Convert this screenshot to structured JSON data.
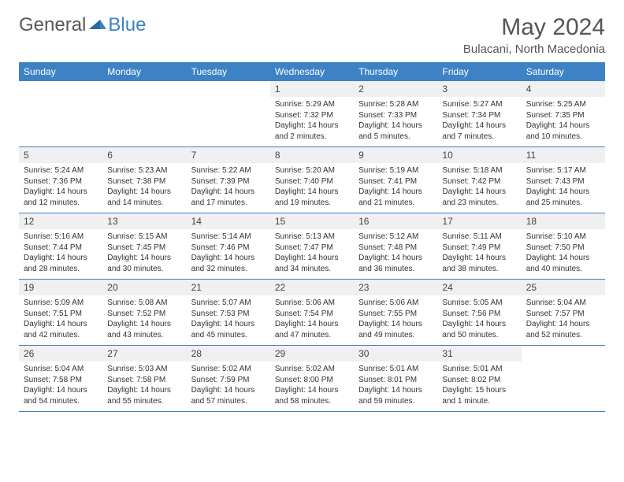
{
  "logo": {
    "part1": "General",
    "part2": "Blue"
  },
  "header": {
    "month_title": "May 2024",
    "location": "Bulacani, North Macedonia"
  },
  "colors": {
    "header_bg": "#3d82c4",
    "header_text": "#ffffff",
    "daynum_bg": "#eef0f2",
    "border": "#3d82c4",
    "title_color": "#555555",
    "logo_gray": "#585858",
    "logo_blue": "#3d82c4"
  },
  "day_headers": [
    "Sunday",
    "Monday",
    "Tuesday",
    "Wednesday",
    "Thursday",
    "Friday",
    "Saturday"
  ],
  "weeks": [
    [
      {
        "num": "",
        "sunrise": "",
        "sunset": "",
        "daylight": ""
      },
      {
        "num": "",
        "sunrise": "",
        "sunset": "",
        "daylight": ""
      },
      {
        "num": "",
        "sunrise": "",
        "sunset": "",
        "daylight": ""
      },
      {
        "num": "1",
        "sunrise": "Sunrise: 5:29 AM",
        "sunset": "Sunset: 7:32 PM",
        "daylight": "Daylight: 14 hours and 2 minutes."
      },
      {
        "num": "2",
        "sunrise": "Sunrise: 5:28 AM",
        "sunset": "Sunset: 7:33 PM",
        "daylight": "Daylight: 14 hours and 5 minutes."
      },
      {
        "num": "3",
        "sunrise": "Sunrise: 5:27 AM",
        "sunset": "Sunset: 7:34 PM",
        "daylight": "Daylight: 14 hours and 7 minutes."
      },
      {
        "num": "4",
        "sunrise": "Sunrise: 5:25 AM",
        "sunset": "Sunset: 7:35 PM",
        "daylight": "Daylight: 14 hours and 10 minutes."
      }
    ],
    [
      {
        "num": "5",
        "sunrise": "Sunrise: 5:24 AM",
        "sunset": "Sunset: 7:36 PM",
        "daylight": "Daylight: 14 hours and 12 minutes."
      },
      {
        "num": "6",
        "sunrise": "Sunrise: 5:23 AM",
        "sunset": "Sunset: 7:38 PM",
        "daylight": "Daylight: 14 hours and 14 minutes."
      },
      {
        "num": "7",
        "sunrise": "Sunrise: 5:22 AM",
        "sunset": "Sunset: 7:39 PM",
        "daylight": "Daylight: 14 hours and 17 minutes."
      },
      {
        "num": "8",
        "sunrise": "Sunrise: 5:20 AM",
        "sunset": "Sunset: 7:40 PM",
        "daylight": "Daylight: 14 hours and 19 minutes."
      },
      {
        "num": "9",
        "sunrise": "Sunrise: 5:19 AM",
        "sunset": "Sunset: 7:41 PM",
        "daylight": "Daylight: 14 hours and 21 minutes."
      },
      {
        "num": "10",
        "sunrise": "Sunrise: 5:18 AM",
        "sunset": "Sunset: 7:42 PM",
        "daylight": "Daylight: 14 hours and 23 minutes."
      },
      {
        "num": "11",
        "sunrise": "Sunrise: 5:17 AM",
        "sunset": "Sunset: 7:43 PM",
        "daylight": "Daylight: 14 hours and 25 minutes."
      }
    ],
    [
      {
        "num": "12",
        "sunrise": "Sunrise: 5:16 AM",
        "sunset": "Sunset: 7:44 PM",
        "daylight": "Daylight: 14 hours and 28 minutes."
      },
      {
        "num": "13",
        "sunrise": "Sunrise: 5:15 AM",
        "sunset": "Sunset: 7:45 PM",
        "daylight": "Daylight: 14 hours and 30 minutes."
      },
      {
        "num": "14",
        "sunrise": "Sunrise: 5:14 AM",
        "sunset": "Sunset: 7:46 PM",
        "daylight": "Daylight: 14 hours and 32 minutes."
      },
      {
        "num": "15",
        "sunrise": "Sunrise: 5:13 AM",
        "sunset": "Sunset: 7:47 PM",
        "daylight": "Daylight: 14 hours and 34 minutes."
      },
      {
        "num": "16",
        "sunrise": "Sunrise: 5:12 AM",
        "sunset": "Sunset: 7:48 PM",
        "daylight": "Daylight: 14 hours and 36 minutes."
      },
      {
        "num": "17",
        "sunrise": "Sunrise: 5:11 AM",
        "sunset": "Sunset: 7:49 PM",
        "daylight": "Daylight: 14 hours and 38 minutes."
      },
      {
        "num": "18",
        "sunrise": "Sunrise: 5:10 AM",
        "sunset": "Sunset: 7:50 PM",
        "daylight": "Daylight: 14 hours and 40 minutes."
      }
    ],
    [
      {
        "num": "19",
        "sunrise": "Sunrise: 5:09 AM",
        "sunset": "Sunset: 7:51 PM",
        "daylight": "Daylight: 14 hours and 42 minutes."
      },
      {
        "num": "20",
        "sunrise": "Sunrise: 5:08 AM",
        "sunset": "Sunset: 7:52 PM",
        "daylight": "Daylight: 14 hours and 43 minutes."
      },
      {
        "num": "21",
        "sunrise": "Sunrise: 5:07 AM",
        "sunset": "Sunset: 7:53 PM",
        "daylight": "Daylight: 14 hours and 45 minutes."
      },
      {
        "num": "22",
        "sunrise": "Sunrise: 5:06 AM",
        "sunset": "Sunset: 7:54 PM",
        "daylight": "Daylight: 14 hours and 47 minutes."
      },
      {
        "num": "23",
        "sunrise": "Sunrise: 5:06 AM",
        "sunset": "Sunset: 7:55 PM",
        "daylight": "Daylight: 14 hours and 49 minutes."
      },
      {
        "num": "24",
        "sunrise": "Sunrise: 5:05 AM",
        "sunset": "Sunset: 7:56 PM",
        "daylight": "Daylight: 14 hours and 50 minutes."
      },
      {
        "num": "25",
        "sunrise": "Sunrise: 5:04 AM",
        "sunset": "Sunset: 7:57 PM",
        "daylight": "Daylight: 14 hours and 52 minutes."
      }
    ],
    [
      {
        "num": "26",
        "sunrise": "Sunrise: 5:04 AM",
        "sunset": "Sunset: 7:58 PM",
        "daylight": "Daylight: 14 hours and 54 minutes."
      },
      {
        "num": "27",
        "sunrise": "Sunrise: 5:03 AM",
        "sunset": "Sunset: 7:58 PM",
        "daylight": "Daylight: 14 hours and 55 minutes."
      },
      {
        "num": "28",
        "sunrise": "Sunrise: 5:02 AM",
        "sunset": "Sunset: 7:59 PM",
        "daylight": "Daylight: 14 hours and 57 minutes."
      },
      {
        "num": "29",
        "sunrise": "Sunrise: 5:02 AM",
        "sunset": "Sunset: 8:00 PM",
        "daylight": "Daylight: 14 hours and 58 minutes."
      },
      {
        "num": "30",
        "sunrise": "Sunrise: 5:01 AM",
        "sunset": "Sunset: 8:01 PM",
        "daylight": "Daylight: 14 hours and 59 minutes."
      },
      {
        "num": "31",
        "sunrise": "Sunrise: 5:01 AM",
        "sunset": "Sunset: 8:02 PM",
        "daylight": "Daylight: 15 hours and 1 minute."
      },
      {
        "num": "",
        "sunrise": "",
        "sunset": "",
        "daylight": ""
      }
    ]
  ]
}
